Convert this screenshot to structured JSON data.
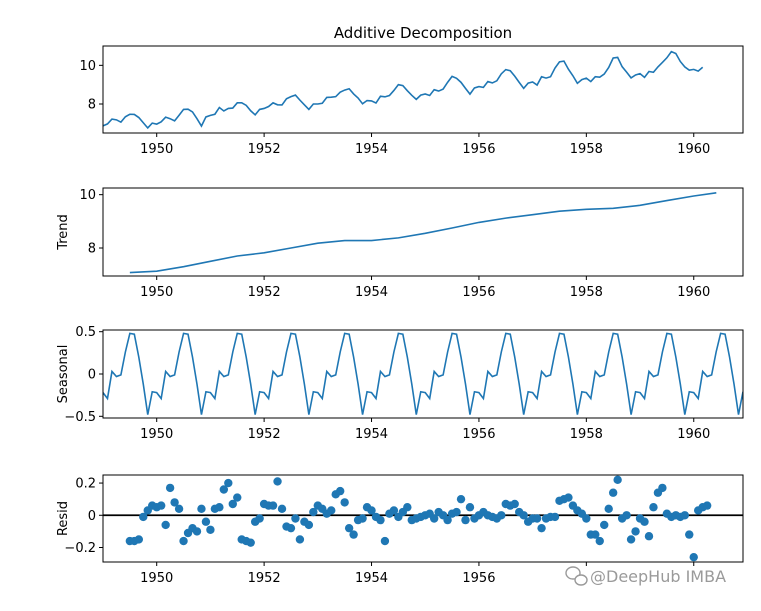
{
  "chart_data": [
    {
      "type": "line",
      "title": "Additive Decomposition",
      "ylabel": "",
      "xlim": [
        1949.0,
        1960.917
      ],
      "ylim": [
        6.5,
        11.0
      ],
      "xticks": [
        1950,
        1952,
        1954,
        1956,
        1958,
        1960
      ],
      "yticks": [
        8,
        10
      ],
      "color": "#1f77b4",
      "series": [
        {
          "x_start": 1949.0,
          "x_step": 0.08333,
          "values": [
            6.87,
            6.97,
            7.22,
            7.18,
            7.06,
            7.34,
            7.47,
            7.46,
            7.3,
            7.03,
            6.76,
            7.01,
            6.96,
            7.08,
            7.32,
            7.24,
            7.13,
            7.42,
            7.72,
            7.73,
            7.59,
            7.24,
            6.86,
            7.33,
            7.41,
            7.47,
            7.82,
            7.64,
            7.77,
            7.79,
            8.06,
            8.06,
            7.93,
            7.65,
            7.44,
            7.72,
            7.77,
            7.87,
            8.06,
            7.96,
            7.95,
            8.27,
            8.38,
            8.46,
            8.2,
            7.96,
            7.72,
            8.0,
            8.0,
            8.04,
            8.34,
            8.35,
            8.38,
            8.61,
            8.72,
            8.79,
            8.52,
            8.31,
            8.01,
            8.18,
            8.16,
            8.05,
            8.4,
            8.37,
            8.44,
            8.7,
            9.0,
            8.95,
            8.69,
            8.45,
            8.24,
            8.46,
            8.52,
            8.44,
            8.74,
            8.67,
            8.77,
            9.12,
            9.43,
            9.33,
            9.12,
            8.81,
            8.51,
            8.83,
            8.9,
            8.86,
            9.16,
            9.09,
            9.2,
            9.56,
            9.78,
            9.72,
            9.44,
            9.12,
            8.81,
            9.08,
            9.14,
            8.98,
            9.41,
            9.34,
            9.41,
            9.86,
            10.18,
            10.22,
            9.8,
            9.46,
            9.07,
            9.26,
            9.34,
            9.16,
            9.41,
            9.39,
            9.55,
            9.89,
            10.38,
            10.41,
            9.93,
            9.65,
            9.35,
            9.5,
            9.57,
            9.38,
            9.68,
            9.64,
            9.92,
            10.15,
            10.39,
            10.71,
            10.61,
            10.2,
            9.92,
            9.75,
            9.79,
            9.7,
            9.9
          ]
        }
      ]
    },
    {
      "type": "line",
      "title": "",
      "ylabel": "Trend",
      "xlim": [
        1949.0,
        1960.917
      ],
      "ylim": [
        6.95,
        10.25
      ],
      "xticks": [
        1950,
        1952,
        1954,
        1956,
        1958,
        1960
      ],
      "yticks": [
        8,
        10
      ],
      "color": "#1f77b4",
      "series": [
        {
          "x": [
            1949.5,
            1950.0,
            1950.5,
            1951.0,
            1951.5,
            1952.0,
            1952.5,
            1953.0,
            1953.5,
            1954.0,
            1954.5,
            1955.0,
            1955.5,
            1956.0,
            1956.5,
            1957.0,
            1957.5,
            1958.0,
            1958.5,
            1959.0,
            1959.5,
            1960.0,
            1960.42
          ],
          "values": [
            7.08,
            7.13,
            7.3,
            7.5,
            7.7,
            7.82,
            8.0,
            8.18,
            8.28,
            8.28,
            8.38,
            8.55,
            8.75,
            8.96,
            9.12,
            9.25,
            9.38,
            9.45,
            9.49,
            9.6,
            9.78,
            9.95,
            10.07
          ]
        }
      ]
    },
    {
      "type": "line",
      "title": "",
      "ylabel": "Seasonal",
      "xlim": [
        1949.0,
        1960.917
      ],
      "ylim": [
        -0.52,
        0.52
      ],
      "xticks": [
        1950,
        1952,
        1954,
        1956,
        1958,
        1960
      ],
      "yticks": [
        -0.5,
        0.0,
        0.5
      ],
      "color": "#1f77b4",
      "pattern": [
        -0.22,
        -0.29,
        0.03,
        -0.03,
        -0.01,
        0.26,
        0.48,
        0.47,
        0.2,
        -0.12,
        -0.48,
        -0.21
      ]
    },
    {
      "type": "scatter",
      "title": "",
      "ylabel": "Resid",
      "xlim": [
        1949.0,
        1960.917
      ],
      "ylim": [
        -0.29,
        0.25
      ],
      "xticks": [
        1950,
        1952,
        1954,
        1956,
        1958,
        1960
      ],
      "yticks": [
        -0.2,
        0.0,
        0.2
      ],
      "xtick_labels_override": {
        "1958": "",
        "1960": ""
      },
      "color": "#1f77b4",
      "hline": 0.0,
      "series": [
        {
          "x_start": 1949.5,
          "x_step": 0.08333,
          "values": [
            -0.16,
            -0.16,
            -0.15,
            -0.01,
            0.03,
            0.06,
            0.05,
            0.06,
            -0.06,
            0.17,
            0.08,
            0.04,
            -0.16,
            -0.11,
            -0.08,
            -0.1,
            0.04,
            -0.04,
            -0.09,
            0.04,
            0.05,
            0.16,
            0.2,
            0.07,
            0.11,
            -0.15,
            -0.16,
            -0.17,
            -0.04,
            -0.02,
            0.07,
            0.06,
            0.06,
            0.21,
            0.04,
            -0.07,
            -0.08,
            -0.02,
            -0.15,
            -0.04,
            -0.06,
            0.02,
            0.06,
            0.04,
            0.01,
            0.03,
            0.13,
            0.15,
            0.08,
            -0.08,
            -0.12,
            -0.03,
            -0.02,
            0.05,
            0.03,
            -0.01,
            -0.03,
            -0.16,
            0.01,
            0.03,
            -0.01,
            0.02,
            0.05,
            -0.03,
            -0.02,
            -0.01,
            0.0,
            0.01,
            -0.02,
            0.02,
            0.0,
            -0.03,
            0.01,
            0.02,
            0.1,
            -0.03,
            0.05,
            -0.02,
            0.0,
            0.02,
            0.0,
            -0.01,
            -0.02,
            0.0,
            0.07,
            0.06,
            0.07,
            0.02,
            0.0,
            -0.04,
            -0.02,
            -0.02,
            -0.08,
            -0.02,
            -0.01,
            -0.01,
            0.09,
            0.1,
            0.11,
            0.06,
            0.03,
            0.01,
            -0.02,
            -0.12,
            -0.12,
            -0.16,
            -0.06,
            0.04,
            0.14,
            0.22,
            -0.02,
            0.0,
            -0.15,
            -0.1,
            -0.02,
            -0.04,
            -0.13,
            0.05,
            0.14,
            0.17,
            0.01,
            -0.01,
            0.0,
            -0.01,
            0.0,
            -0.12,
            -0.26,
            0.03,
            0.05,
            0.06
          ]
        }
      ]
    }
  ],
  "watermark": {
    "icon": "wechat-icon",
    "text": "@DeepHub IMBA"
  }
}
